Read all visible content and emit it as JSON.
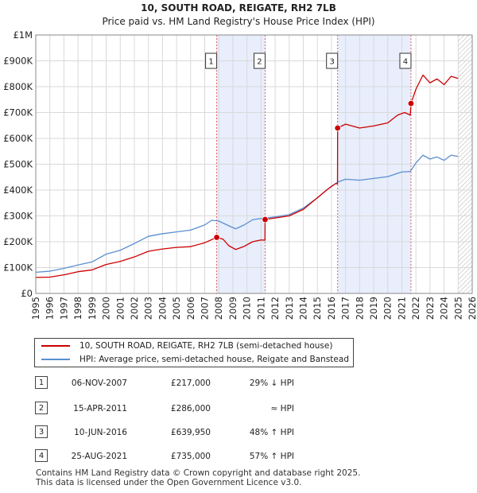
{
  "chart_data": {
    "type": "line",
    "title": "10, SOUTH ROAD, REIGATE, RH2 7LB",
    "subtitle": "Price paid vs. HM Land Registry's House Price Index (HPI)",
    "xlim": [
      1995,
      2026
    ],
    "ylim": [
      0,
      1000000
    ],
    "x_ticks": [
      "1995",
      "1996",
      "1997",
      "1998",
      "1999",
      "2000",
      "2001",
      "2002",
      "2003",
      "2004",
      "2005",
      "2006",
      "2007",
      "2008",
      "2009",
      "2010",
      "2011",
      "2012",
      "2013",
      "2014",
      "2015",
      "2016",
      "2017",
      "2018",
      "2019",
      "2020",
      "2021",
      "2022",
      "2023",
      "2024",
      "2025",
      "2026"
    ],
    "y_ticks": [
      {
        "value": 0,
        "label": "£0"
      },
      {
        "value": 100000,
        "label": "£100K"
      },
      {
        "value": 200000,
        "label": "£200K"
      },
      {
        "value": 300000,
        "label": "£300K"
      },
      {
        "value": 400000,
        "label": "£400K"
      },
      {
        "value": 500000,
        "label": "£500K"
      },
      {
        "value": 600000,
        "label": "£600K"
      },
      {
        "value": 700000,
        "label": "£700K"
      },
      {
        "value": 800000,
        "label": "£800K"
      },
      {
        "value": 900000,
        "label": "£900K"
      },
      {
        "value": 1000000,
        "label": "£1M"
      }
    ],
    "grid": true,
    "shaded_regions": [
      {
        "from": 2007.85,
        "to": 2011.29
      },
      {
        "from": 2016.44,
        "to": 2021.65
      }
    ],
    "future_hatch_from": 2025.0,
    "series": [
      {
        "name": "10, SOUTH ROAD, REIGATE, RH2 7LB (semi-detached house)",
        "color": "#cc0000",
        "points": [
          [
            1995.0,
            62000
          ],
          [
            1996.0,
            63000
          ],
          [
            1997.0,
            72000
          ],
          [
            1998.0,
            84000
          ],
          [
            1999.0,
            91000
          ],
          [
            2000.0,
            112000
          ],
          [
            2001.0,
            124000
          ],
          [
            2002.0,
            141000
          ],
          [
            2003.0,
            163000
          ],
          [
            2004.0,
            172000
          ],
          [
            2005.0,
            178000
          ],
          [
            2006.0,
            181000
          ],
          [
            2007.0,
            196000
          ],
          [
            2007.85,
            217000
          ],
          [
            2008.3,
            210000
          ],
          [
            2008.7,
            185000
          ],
          [
            2009.2,
            170000
          ],
          [
            2009.8,
            182000
          ],
          [
            2010.4,
            200000
          ],
          [
            2011.0,
            207000
          ],
          [
            2011.28,
            206000
          ],
          [
            2011.29,
            286000
          ],
          [
            2012.0,
            292000
          ],
          [
            2013.0,
            300000
          ],
          [
            2014.0,
            325000
          ],
          [
            2015.0,
            370000
          ],
          [
            2015.7,
            402000
          ],
          [
            2016.3,
            425000
          ],
          [
            2016.43,
            424000
          ],
          [
            2016.44,
            639950
          ],
          [
            2017.0,
            655000
          ],
          [
            2018.0,
            640000
          ],
          [
            2019.0,
            648000
          ],
          [
            2020.0,
            660000
          ],
          [
            2020.7,
            690000
          ],
          [
            2021.2,
            700000
          ],
          [
            2021.6,
            690000
          ],
          [
            2021.65,
            735000
          ],
          [
            2022.0,
            790000
          ],
          [
            2022.5,
            845000
          ],
          [
            2023.0,
            815000
          ],
          [
            2023.5,
            830000
          ],
          [
            2024.0,
            808000
          ],
          [
            2024.5,
            840000
          ],
          [
            2025.0,
            832000
          ]
        ]
      },
      {
        "name": "HPI: Average price, semi-detached house, Reigate and Banstead",
        "color": "#5b8fd0",
        "points": [
          [
            1995.0,
            82000
          ],
          [
            1996.0,
            86000
          ],
          [
            1997.0,
            97000
          ],
          [
            1998.0,
            110000
          ],
          [
            1999.0,
            122000
          ],
          [
            2000.0,
            152000
          ],
          [
            2001.0,
            167000
          ],
          [
            2002.0,
            193000
          ],
          [
            2003.0,
            221000
          ],
          [
            2004.0,
            231000
          ],
          [
            2005.0,
            238000
          ],
          [
            2006.0,
            245000
          ],
          [
            2007.0,
            265000
          ],
          [
            2007.5,
            283000
          ],
          [
            2008.0,
            280000
          ],
          [
            2008.7,
            262000
          ],
          [
            2009.2,
            250000
          ],
          [
            2009.8,
            265000
          ],
          [
            2010.4,
            285000
          ],
          [
            2011.0,
            290000
          ],
          [
            2012.0,
            296000
          ],
          [
            2013.0,
            305000
          ],
          [
            2014.0,
            330000
          ],
          [
            2015.0,
            370000
          ],
          [
            2016.0,
            415000
          ],
          [
            2016.5,
            432000
          ],
          [
            2017.0,
            442000
          ],
          [
            2018.0,
            438000
          ],
          [
            2019.0,
            445000
          ],
          [
            2020.0,
            452000
          ],
          [
            2021.0,
            470000
          ],
          [
            2021.6,
            472000
          ],
          [
            2022.0,
            505000
          ],
          [
            2022.5,
            535000
          ],
          [
            2023.0,
            520000
          ],
          [
            2023.5,
            528000
          ],
          [
            2024.0,
            515000
          ],
          [
            2024.5,
            535000
          ],
          [
            2025.0,
            530000
          ]
        ]
      }
    ],
    "sales": [
      {
        "marker": "1",
        "x": 2007.85,
        "y": 217000
      },
      {
        "marker": "2",
        "x": 2011.29,
        "y": 286000
      },
      {
        "marker": "3",
        "x": 2016.44,
        "y": 639950
      },
      {
        "marker": "4",
        "x": 2021.65,
        "y": 735000
      }
    ]
  },
  "legend": {
    "items": [
      {
        "label": "10, SOUTH ROAD, REIGATE, RH2 7LB (semi-detached house)",
        "color": "#cc0000"
      },
      {
        "label": "HPI: Average price, semi-detached house, Reigate and Banstead",
        "color": "#5b8fd0"
      }
    ]
  },
  "table": {
    "rows": [
      {
        "num": "1",
        "date": "06-NOV-2007",
        "price": "£217,000",
        "diff": "29% ↓ HPI"
      },
      {
        "num": "2",
        "date": "15-APR-2011",
        "price": "£286,000",
        "diff": "≈ HPI"
      },
      {
        "num": "3",
        "date": "10-JUN-2016",
        "price": "£639,950",
        "diff": "48% ↑ HPI"
      },
      {
        "num": "4",
        "date": "25-AUG-2021",
        "price": "£735,000",
        "diff": "57% ↑ HPI"
      }
    ]
  },
  "footer": {
    "line1": "Contains HM Land Registry data © Crown copyright and database right 2025.",
    "line2": "This data is licensed under the Open Government Licence v3.0."
  }
}
